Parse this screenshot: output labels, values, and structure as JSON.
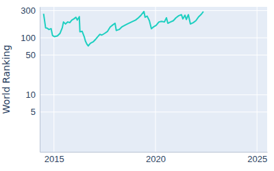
{
  "chart_data": {
    "type": "line",
    "y_label": "World Ranking",
    "log": "y",
    "grid": true,
    "color": "#1ccfc0",
    "x": [
      2014.49,
      2014.59,
      2014.66,
      2014.76,
      2014.86,
      2014.93,
      2015.03,
      2015.17,
      2015.3,
      2015.41,
      2015.47,
      2015.57,
      2015.68,
      2015.78,
      2015.88,
      2015.98,
      2016.08,
      2016.15,
      2016.25,
      2016.28,
      2016.39,
      2016.49,
      2016.55,
      2016.62,
      2016.69,
      2016.79,
      2016.93,
      2017.06,
      2017.16,
      2017.26,
      2017.36,
      2017.5,
      2017.64,
      2017.77,
      2017.91,
      2018.01,
      2018.07,
      2018.21,
      2018.34,
      2018.48,
      2018.61,
      2018.75,
      2018.89,
      2019.02,
      2019.16,
      2019.29,
      2019.43,
      2019.49,
      2019.59,
      2019.7,
      2019.8,
      2019.9,
      2020.03,
      2020.17,
      2020.3,
      2020.44,
      2020.54,
      2020.61,
      2020.74,
      2020.88,
      2021.01,
      2021.15,
      2021.28,
      2021.35,
      2021.45,
      2021.52,
      2021.62,
      2021.72,
      2021.86,
      2021.99,
      2022.13,
      2022.26,
      2022.36
    ],
    "values": [
      265,
      150,
      148,
      140,
      145,
      110,
      105,
      108,
      120,
      150,
      190,
      175,
      190,
      185,
      205,
      215,
      230,
      205,
      235,
      128,
      130,
      105,
      88,
      78,
      72,
      80,
      85,
      95,
      105,
      115,
      112,
      120,
      130,
      155,
      170,
      180,
      135,
      140,
      155,
      165,
      175,
      185,
      195,
      205,
      225,
      250,
      290,
      230,
      240,
      200,
      145,
      155,
      165,
      190,
      195,
      190,
      225,
      180,
      190,
      200,
      225,
      245,
      255,
      215,
      250,
      210,
      255,
      175,
      185,
      200,
      235,
      260,
      290
    ],
    "xlim": [
      2014.3,
      2025.5
    ],
    "xticks": [
      2015,
      2020,
      2025
    ],
    "ylim": [
      1,
      350
    ],
    "yticks": [
      5,
      10,
      50,
      100,
      300
    ]
  }
}
